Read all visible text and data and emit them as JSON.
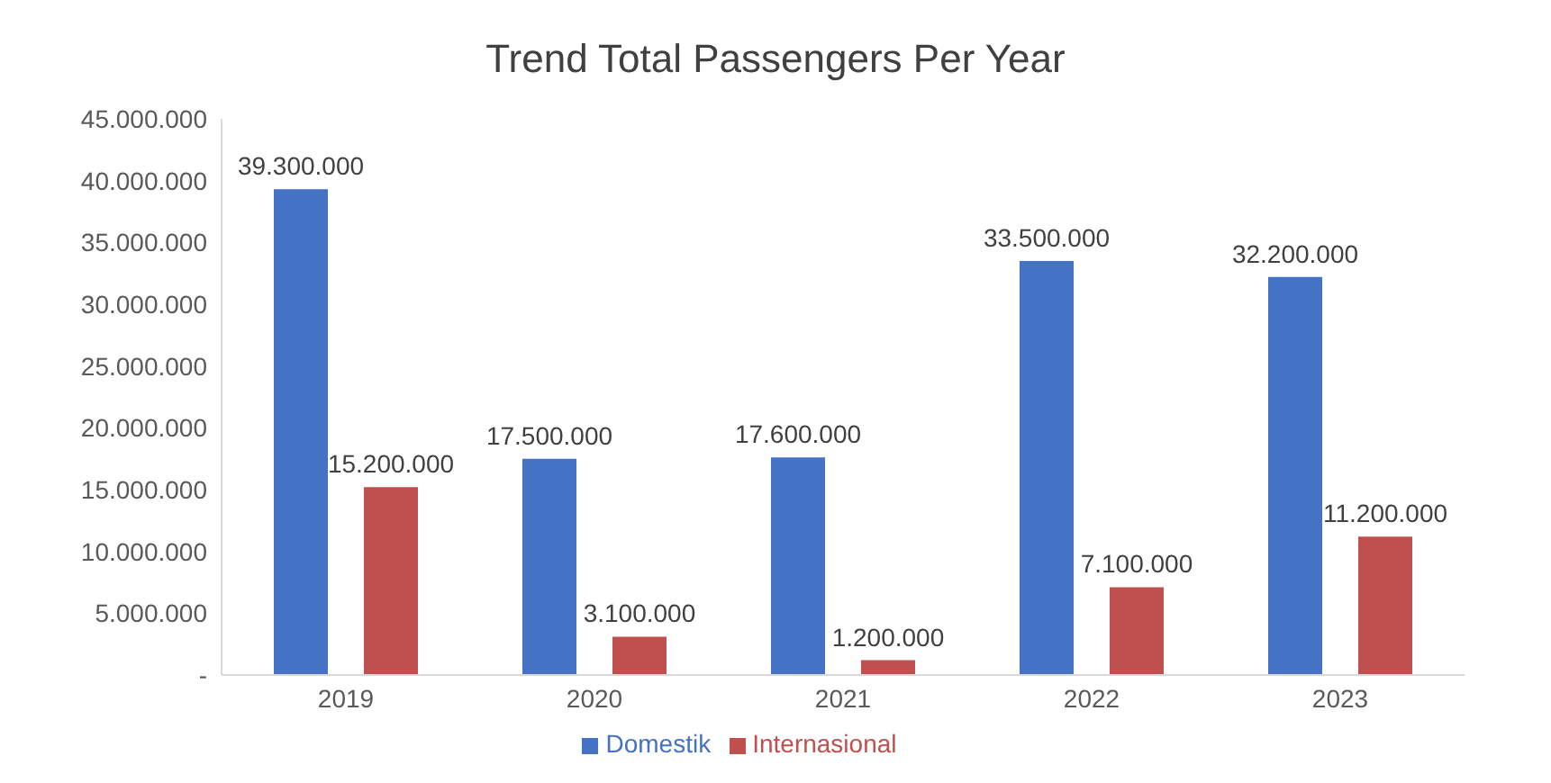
{
  "chart_data": {
    "type": "bar",
    "title": "Trend Total Passengers Per Year",
    "categories": [
      "2019",
      "2020",
      "2021",
      "2022",
      "2023"
    ],
    "series": [
      {
        "name": "Domestik",
        "color": "#4472c4",
        "values": [
          39300000,
          17500000,
          17600000,
          33500000,
          32200000
        ],
        "value_labels": [
          "39.300.000",
          "17.500.000",
          "17.600.000",
          "33.500.000",
          "32.200.000"
        ]
      },
      {
        "name": "Internasional",
        "color": "#c0504d",
        "values": [
          15200000,
          3100000,
          1200000,
          7100000,
          11200000
        ],
        "value_labels": [
          "15.200.000",
          "3.100.000",
          "1.200.000",
          "7.100.000",
          "11.200.000"
        ]
      }
    ],
    "ylim": [
      0,
      45000000
    ],
    "yticks": [
      {
        "value": 0,
        "label": "-"
      },
      {
        "value": 5000000,
        "label": "5.000.000"
      },
      {
        "value": 10000000,
        "label": "10.000.000"
      },
      {
        "value": 15000000,
        "label": "15.000.000"
      },
      {
        "value": 20000000,
        "label": "20.000.000"
      },
      {
        "value": 25000000,
        "label": "25.000.000"
      },
      {
        "value": 30000000,
        "label": "30.000.000"
      },
      {
        "value": 35000000,
        "label": "35.000.000"
      },
      {
        "value": 40000000,
        "label": "40.000.000"
      },
      {
        "value": 45000000,
        "label": "45.000.000"
      }
    ],
    "legend": "bottom",
    "grid": false
  }
}
